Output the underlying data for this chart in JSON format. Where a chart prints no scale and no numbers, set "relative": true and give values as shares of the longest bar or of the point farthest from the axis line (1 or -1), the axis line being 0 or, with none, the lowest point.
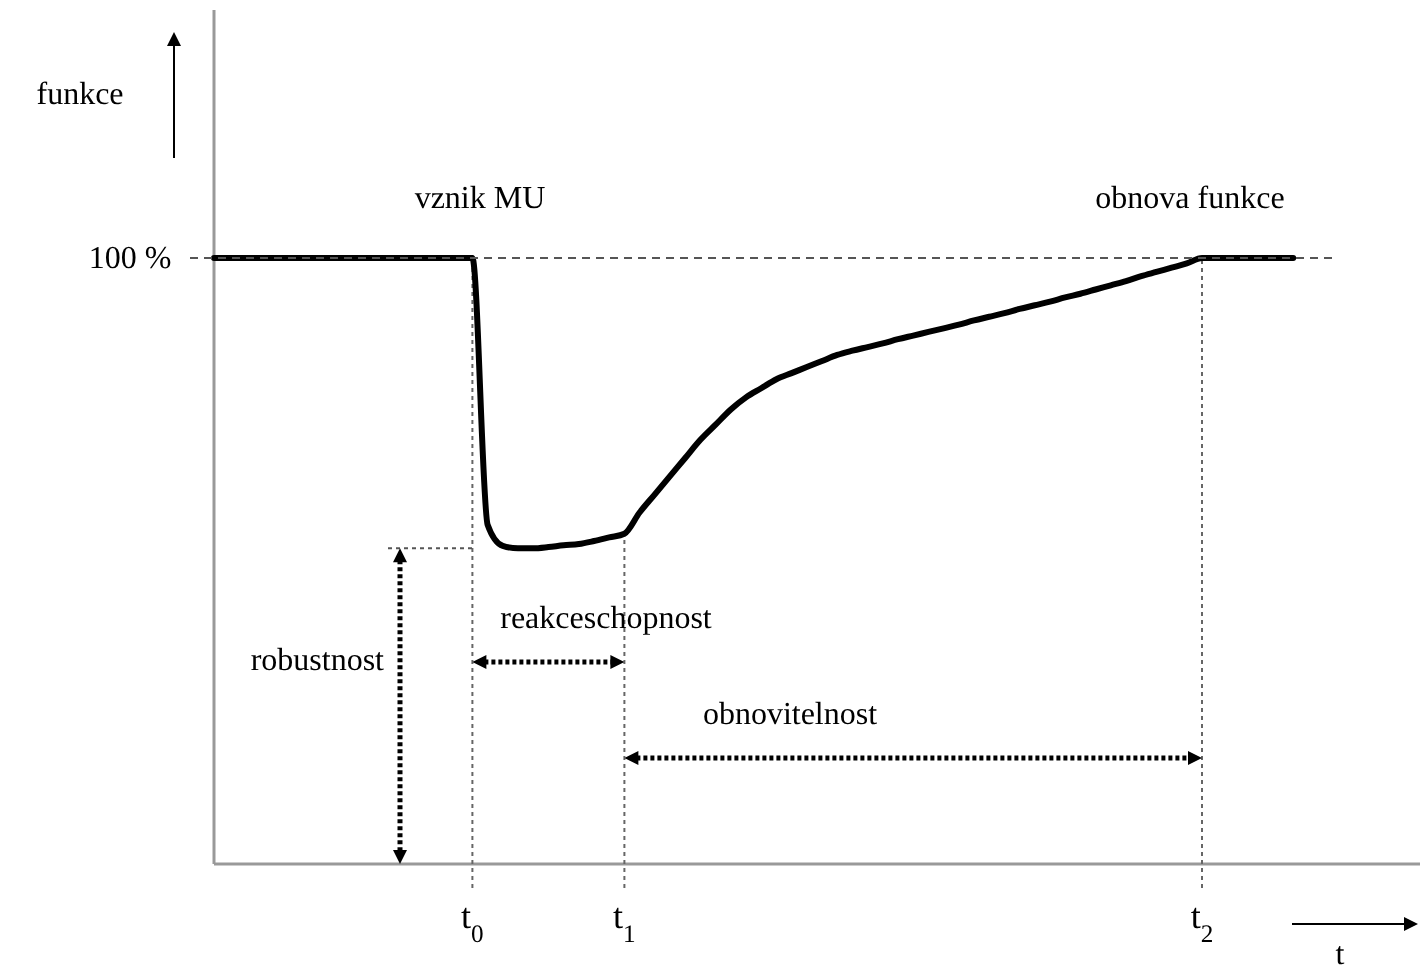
{
  "chart_data": {
    "type": "line",
    "relative": true,
    "xlabel": "t",
    "categories": [
      null,
      null,
      null,
      null,
      null,
      null,
      null,
      null,
      null,
      null,
      null,
      null,
      null,
      null,
      null,
      null,
      null,
      "t$_{0}$",
      null,
      null,
      null,
      null,
      null,
      null,
      null,
      null,
      null,
      "t$_{1}$",
      null,
      null,
      null,
      null,
      null,
      null,
      null,
      null,
      null,
      null,
      null,
      null,
      null,
      null,
      null,
      null,
      null,
      null,
      null,
      null,
      null,
      null,
      null,
      null,
      null,
      null,
      null,
      null,
      null,
      null,
      null,
      null,
      null,
      null,
      null,
      null,
      null,
      "t$_{2}$",
      null,
      null,
      null,
      null,
      null,
      null
    ],
    "series": [
      {
        "color": "#000000",
        "values": [
          1,
          1,
          1,
          1,
          1,
          1,
          1,
          1,
          1,
          1,
          1,
          1,
          1,
          1,
          1,
          1,
          1,
          1,
          0.56,
          0.525,
          0.521,
          0.521,
          0.523,
          0.526,
          0.528,
          0.533,
          0.539,
          0.545,
          0.58,
          0.61,
          0.64,
          0.67,
          0.7,
          0.725,
          0.75,
          0.77,
          0.785,
          0.8,
          0.81,
          0.82,
          0.83,
          0.84,
          0.847,
          0.853,
          0.859,
          0.866,
          0.872,
          0.878,
          0.884,
          0.89,
          0.897,
          0.903,
          0.909,
          0.916,
          0.922,
          0.928,
          0.935,
          0.941,
          0.948,
          0.955,
          0.962,
          0.97,
          0.977,
          0.984,
          0.991,
          1,
          1,
          1,
          1,
          1,
          1,
          1
        ]
      }
    ],
    "ref_lines": [
      {
        "axis": "y",
        "value": 1,
        "label": "100 %",
        "line_style": "dashed"
      }
    ],
    "annotations": [
      "vznik MU",
      "obnova funkce",
      "robustnost",
      "reakceschopnost",
      "obnovitelnost",
      "funkce"
    ],
    "grid": "x",
    "marker": "none",
    "line_style": "solid"
  }
}
